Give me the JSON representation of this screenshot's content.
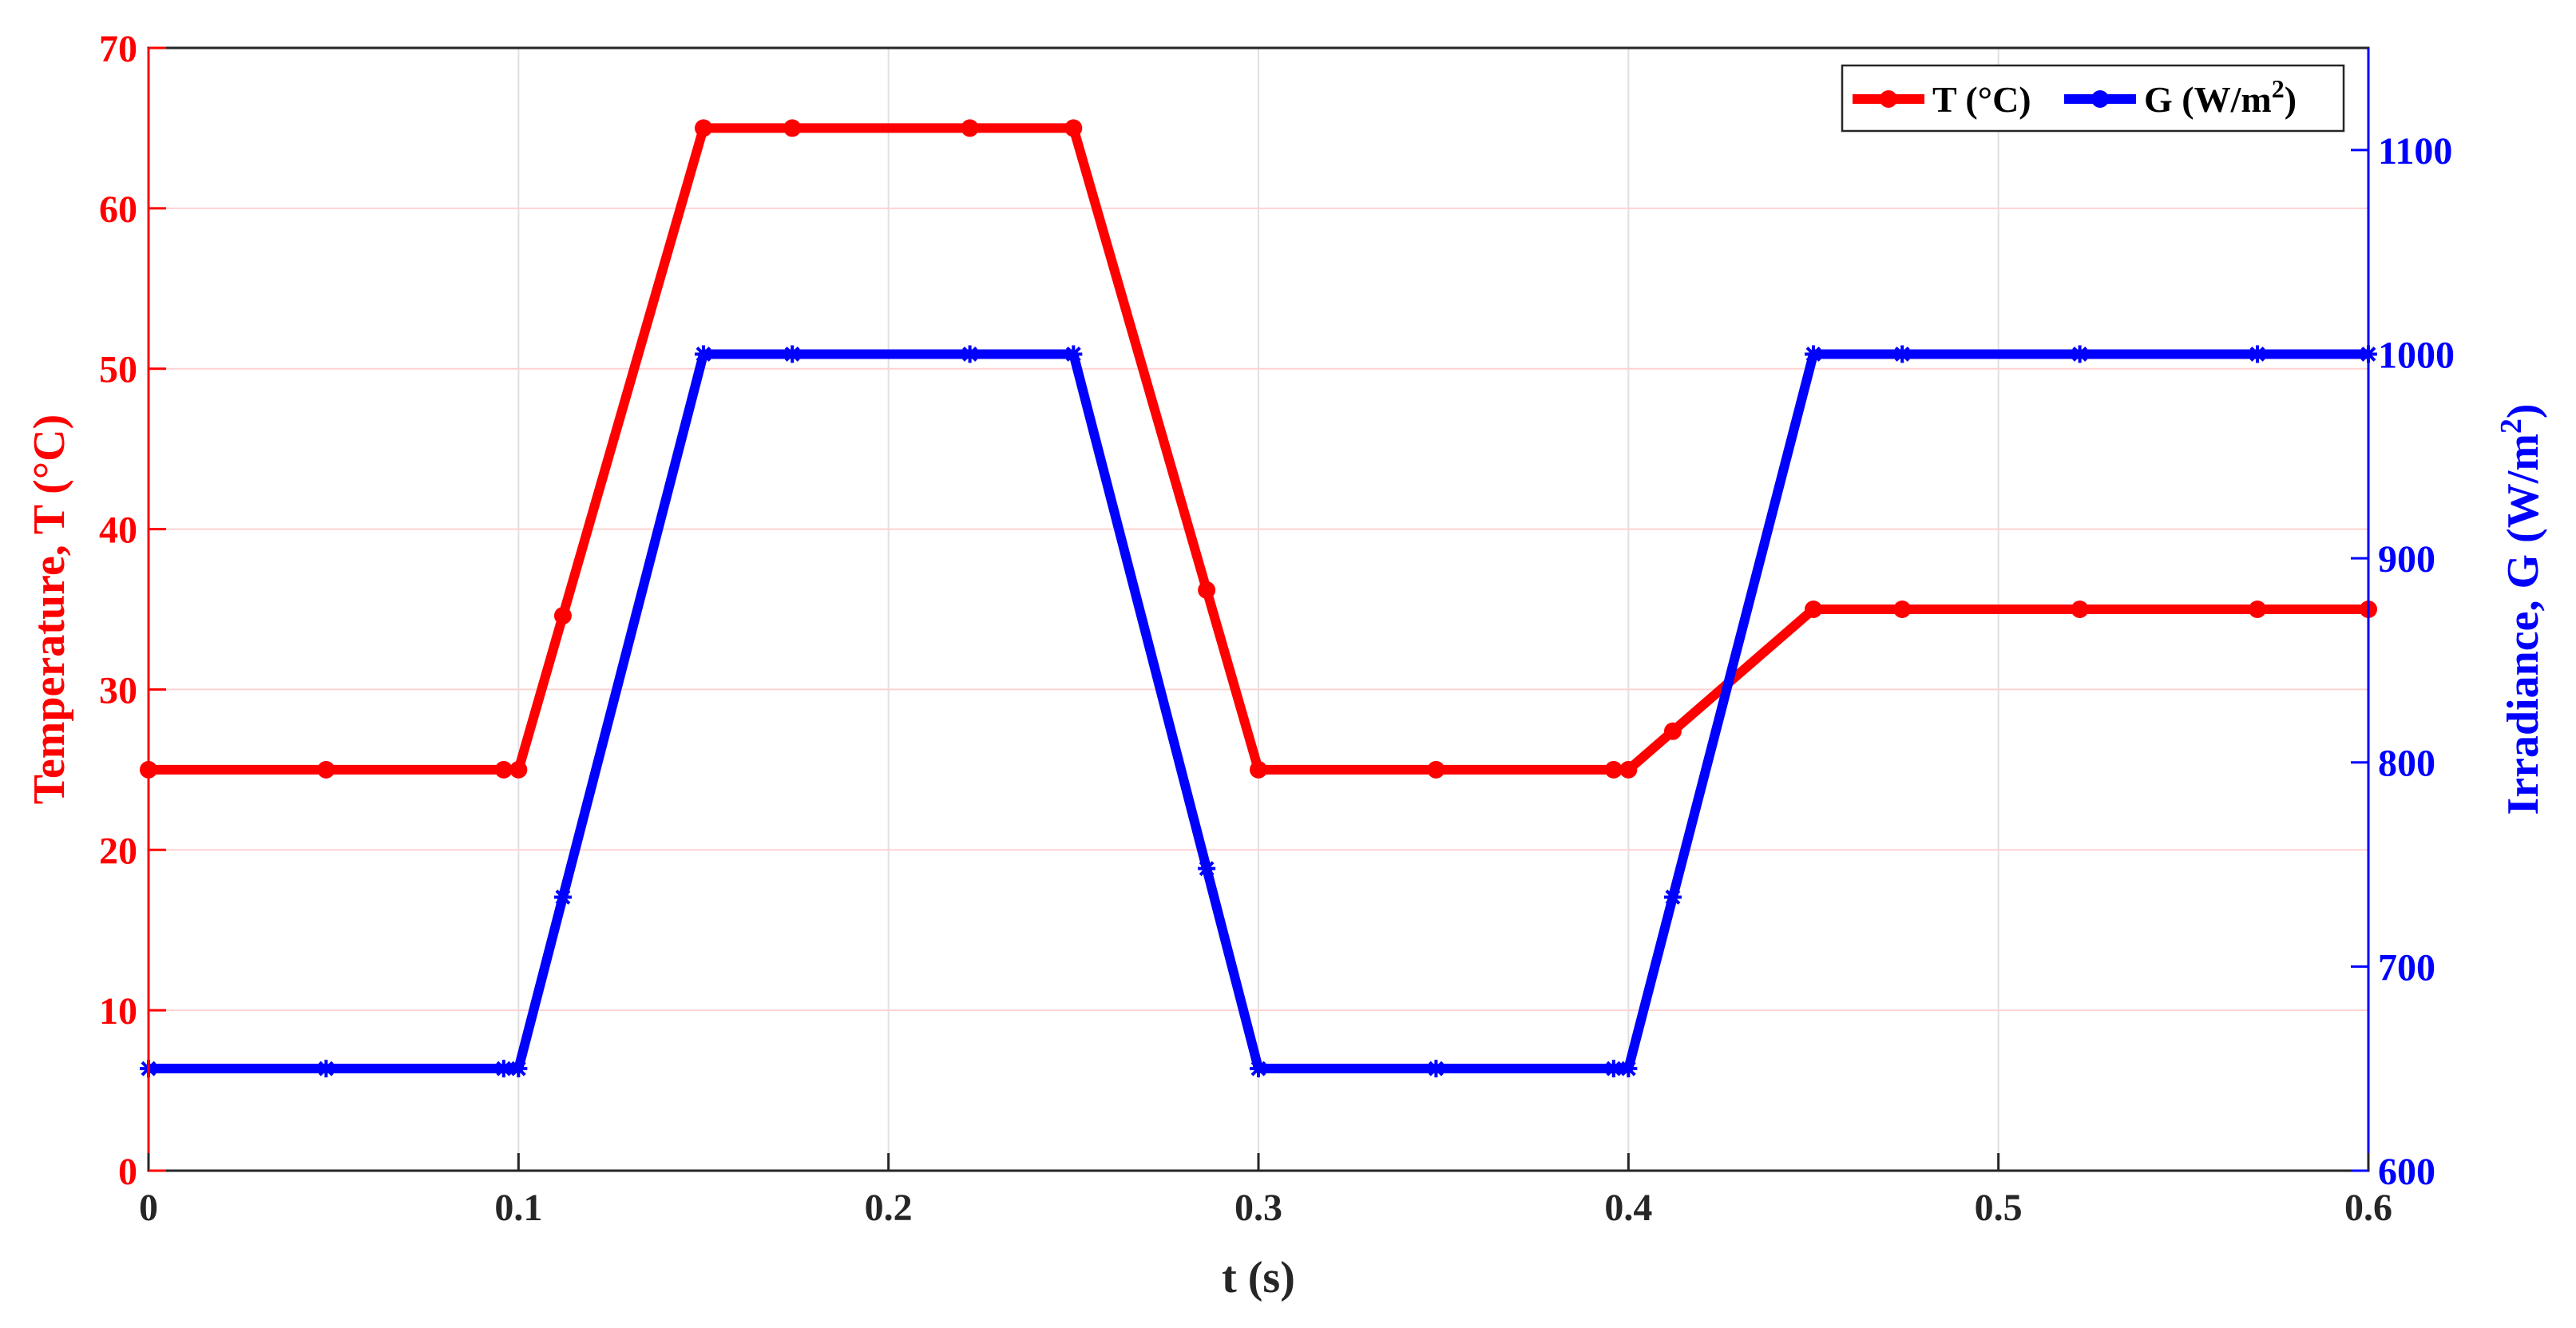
{
  "chart_data": {
    "type": "line",
    "xlabel": "t (s)",
    "x_ticks": [
      "0",
      "0.1",
      "0.2",
      "0.3",
      "0.4",
      "0.5",
      "0.6"
    ],
    "xlim": [
      0,
      0.6
    ],
    "y_left": {
      "label": "Temperature, T (°C)",
      "ticks": [
        "0",
        "10",
        "20",
        "30",
        "40",
        "50",
        "60",
        "70"
      ],
      "ylim": [
        0,
        70
      ],
      "color": "#ff0000"
    },
    "y_right": {
      "label_prefix": "Irradiance, G (W/m",
      "label_sup": "2",
      "label_suffix": ")",
      "ticks": [
        "600",
        "700",
        "800",
        "900",
        "1000",
        "1100"
      ],
      "ylim": [
        600,
        1150
      ],
      "color": "#0000ff"
    },
    "grid": true,
    "legend_position": "top-right",
    "series": [
      {
        "name": "T (°C)",
        "axis": "left",
        "color": "#ff0000",
        "x": [
          0,
          0.048,
          0.096,
          0.1,
          0.112,
          0.15,
          0.174,
          0.222,
          0.25,
          0.286,
          0.3,
          0.348,
          0.396,
          0.4,
          0.412,
          0.45,
          0.474,
          0.522,
          0.57,
          0.6
        ],
        "y": [
          25,
          25,
          25,
          25,
          34.6,
          65,
          65,
          65,
          65,
          36.2,
          25,
          25,
          25,
          25,
          27.4,
          35,
          35,
          35,
          35,
          35
        ]
      },
      {
        "name_prefix": "G (W/m",
        "name_sup": "2",
        "name_suffix": ")",
        "axis": "right",
        "color": "#0000ff",
        "x": [
          0,
          0.048,
          0.096,
          0.1,
          0.112,
          0.15,
          0.174,
          0.222,
          0.25,
          0.286,
          0.3,
          0.348,
          0.396,
          0.4,
          0.412,
          0.45,
          0.474,
          0.522,
          0.57,
          0.6
        ],
        "y": [
          650,
          650,
          650,
          650,
          734,
          1000,
          1000,
          1000,
          1000,
          748,
          650,
          650,
          650,
          650,
          734,
          1000,
          1000,
          1000,
          1000,
          1000
        ]
      }
    ]
  }
}
